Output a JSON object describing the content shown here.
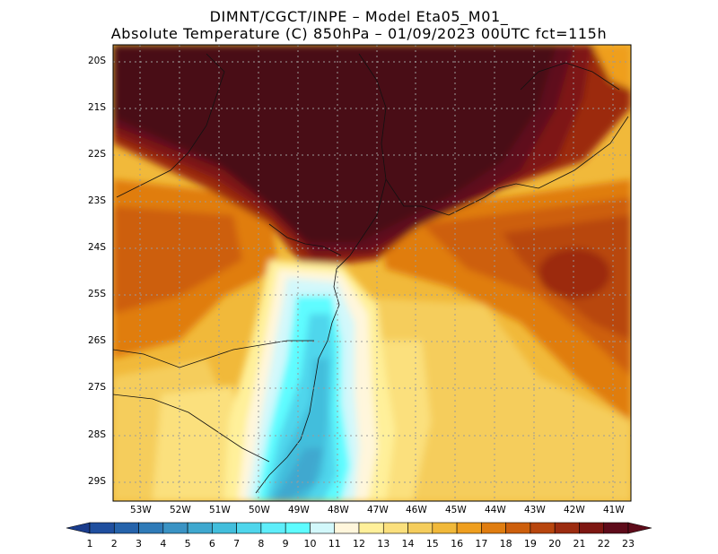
{
  "title": {
    "line1": "DIMNT/CGCT/INPE –  Model Eta05_M01_",
    "line2": "Absolute Temperature (C) 850hPa –  01/09/2023 00UTC fct=115h"
  },
  "map": {
    "lat_labels": [
      "20S",
      "21S",
      "22S",
      "23S",
      "24S",
      "25S",
      "26S",
      "27S",
      "28S",
      "29S"
    ],
    "lon_labels": [
      "53W",
      "52W",
      "51W",
      "50W",
      "49W",
      "48W",
      "47W",
      "46W",
      "45W",
      "44W",
      "43W",
      "42W",
      "41W"
    ]
  },
  "colorbar": {
    "labels": [
      "1",
      "2",
      "3",
      "4",
      "5",
      "6",
      "7",
      "8",
      "9",
      "10",
      "11",
      "12",
      "13",
      "14",
      "15",
      "16",
      "17",
      "18",
      "19",
      "20",
      "21",
      "22",
      "23"
    ],
    "colors": [
      "#1a3c8c",
      "#1f4f9f",
      "#2563ab",
      "#2f7bb8",
      "#3a93c4",
      "#3fa8cf",
      "#42bedc",
      "#4fd6ec",
      "#5eeefa",
      "#5efcff",
      "#d2f8fb",
      "#fff6dc",
      "#fff09a",
      "#fbe07d",
      "#f5cd5c",
      "#f1b93a",
      "#ef9f1f",
      "#e07d10",
      "#cd5f0c",
      "#b8460e",
      "#9c2c10",
      "#7e1712",
      "#5e0b1a"
    ]
  }
}
